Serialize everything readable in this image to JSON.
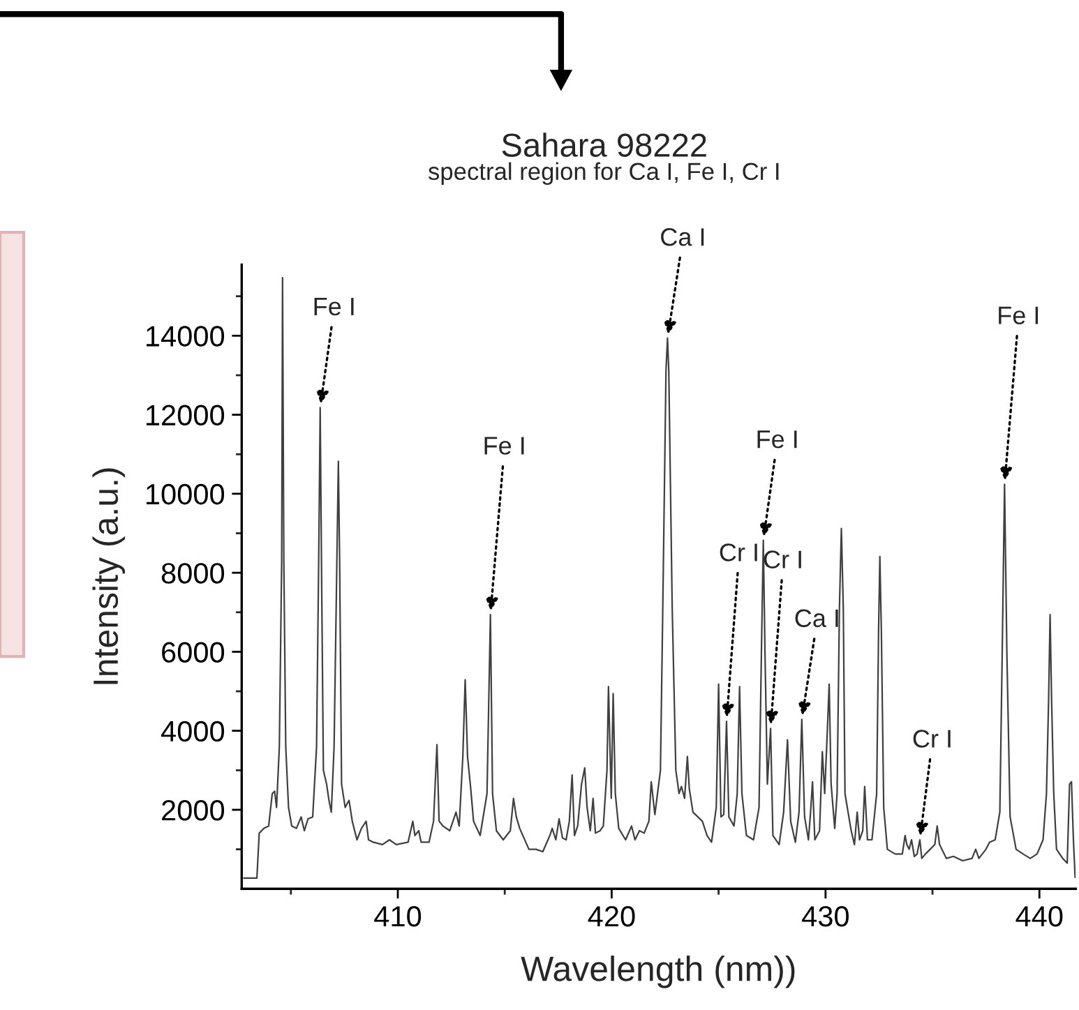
{
  "chart_data": {
    "type": "line",
    "title": "Sahara 98222",
    "subtitle": "spectral region for Ca I, Fe I, Cr I",
    "xlabel": "Wavelength (nm))",
    "ylabel": "Intensity (a.u.)",
    "xlim": [
      402.7,
      441.7
    ],
    "ylim": [
      0,
      15800
    ],
    "xticks": [
      410,
      420,
      430,
      440
    ],
    "yticks": [
      2000,
      4000,
      6000,
      8000,
      10000,
      12000,
      14000
    ],
    "grid": false,
    "legend": false,
    "marker": "none",
    "line_style": "solid",
    "series": [
      {
        "color": "#404040",
        "x": [
          402.8,
          403.41,
          403.52,
          403.74,
          403.96,
          404.13,
          404.24,
          404.33,
          404.46,
          404.57,
          404.61,
          404.67,
          404.76,
          404.89,
          405.04,
          405.26,
          405.48,
          405.63,
          405.8,
          406.02,
          406.2,
          406.3,
          406.37,
          406.43,
          406.52,
          406.67,
          406.78,
          406.89,
          407.02,
          407.15,
          407.22,
          407.28,
          407.37,
          407.54,
          407.72,
          407.87,
          408.09,
          408.3,
          408.52,
          408.63,
          408.85,
          409.28,
          409.61,
          409.93,
          410.48,
          410.7,
          410.8,
          410.98,
          411.09,
          411.46,
          411.67,
          411.83,
          411.93,
          412.11,
          412.43,
          412.72,
          412.87,
          413.04,
          413.15,
          413.26,
          413.41,
          413.54,
          413.85,
          414.17,
          414.33,
          414.43,
          414.61,
          414.93,
          415.26,
          415.41,
          415.54,
          415.7,
          416.13,
          416.46,
          416.78,
          417.11,
          417.22,
          417.39,
          417.54,
          417.7,
          417.87,
          418.02,
          418.15,
          418.26,
          418.41,
          418.59,
          418.74,
          418.85,
          419.0,
          419.13,
          419.24,
          419.46,
          419.61,
          419.78,
          419.85,
          419.98,
          420.07,
          420.17,
          420.33,
          420.65,
          420.93,
          421.09,
          421.3,
          421.52,
          421.74,
          421.85,
          422.02,
          422.28,
          422.39,
          422.54,
          422.61,
          422.67,
          422.83,
          423.0,
          423.15,
          423.26,
          423.41,
          423.54,
          423.63,
          423.8,
          424.24,
          424.46,
          424.67,
          424.89,
          425.0,
          425.11,
          425.24,
          425.37,
          425.48,
          425.72,
          425.87,
          425.98,
          426.09,
          426.3,
          426.63,
          426.89,
          427.0,
          427.09,
          427.17,
          427.28,
          427.43,
          427.54,
          427.83,
          428.04,
          428.22,
          428.37,
          428.59,
          428.76,
          428.89,
          429.02,
          429.2,
          429.3,
          429.39,
          429.5,
          429.72,
          429.85,
          429.96,
          430.07,
          430.17,
          430.26,
          430.43,
          430.54,
          430.65,
          430.74,
          430.83,
          430.91,
          431.09,
          431.2,
          431.35,
          431.48,
          431.59,
          431.74,
          431.83,
          431.96,
          432.17,
          432.39,
          432.48,
          432.54,
          432.61,
          432.72,
          432.89,
          433.26,
          433.59,
          433.72,
          433.8,
          433.91,
          434.02,
          434.15,
          434.28,
          434.41,
          434.5,
          434.67,
          434.89,
          435.11,
          435.22,
          435.33,
          435.65,
          435.98,
          436.41,
          436.85,
          437.02,
          437.17,
          437.5,
          437.67,
          437.93,
          438.15,
          438.26,
          438.37,
          438.48,
          438.63,
          438.91,
          439.24,
          439.57,
          439.89,
          440.17,
          440.33,
          440.43,
          440.5,
          440.57,
          440.67,
          440.8,
          441.09,
          441.3,
          441.41,
          441.5,
          441.59,
          441.67
        ],
        "values": [
          270,
          270,
          1410,
          1530,
          1590,
          2410,
          2470,
          2060,
          3590,
          8290,
          15470,
          8290,
          3590,
          2060,
          1590,
          1530,
          1820,
          1470,
          1770,
          1820,
          3590,
          8290,
          12180,
          8290,
          3000,
          2650,
          2240,
          1940,
          3590,
          8290,
          10820,
          8290,
          2650,
          2060,
          2240,
          1710,
          1240,
          1530,
          1710,
          1240,
          1180,
          1120,
          1240,
          1120,
          1180,
          1710,
          1350,
          1470,
          1180,
          1180,
          1710,
          3650,
          1710,
          1590,
          1470,
          1940,
          1590,
          3350,
          5290,
          3350,
          2530,
          1710,
          1350,
          2410,
          6940,
          2410,
          1470,
          1240,
          1470,
          2290,
          1820,
          1530,
          1000,
          1000,
          940,
          1350,
          1530,
          1240,
          1770,
          1290,
          1240,
          1710,
          2880,
          1350,
          1590,
          2650,
          3060,
          2060,
          1470,
          2290,
          1410,
          1470,
          1590,
          3000,
          5120,
          2290,
          4940,
          2410,
          1530,
          1240,
          1590,
          1240,
          1470,
          1410,
          1710,
          2710,
          1880,
          3000,
          7120,
          13120,
          13940,
          13120,
          7120,
          3000,
          2410,
          2590,
          2290,
          3350,
          2530,
          1940,
          1710,
          1350,
          1180,
          2060,
          5180,
          1820,
          1880,
          4240,
          1820,
          1590,
          2410,
          5120,
          2410,
          1350,
          1240,
          2060,
          5940,
          8820,
          5940,
          2650,
          4060,
          1350,
          1120,
          1940,
          3770,
          1710,
          1180,
          1940,
          4290,
          1820,
          1240,
          1940,
          2710,
          1240,
          1470,
          3470,
          2410,
          3820,
          5180,
          2650,
          1530,
          2410,
          7120,
          9120,
          7120,
          2410,
          1820,
          1470,
          1120,
          1940,
          1240,
          1470,
          2590,
          1240,
          1240,
          2410,
          6530,
          8410,
          6530,
          2060,
          1000,
          880,
          880,
          1350,
          1120,
          1000,
          1240,
          820,
          880,
          1240,
          770,
          880,
          1000,
          1120,
          1590,
          1120,
          770,
          820,
          710,
          770,
          1000,
          770,
          1000,
          1180,
          1240,
          1940,
          5940,
          10240,
          5940,
          1820,
          1000,
          880,
          770,
          880,
          1240,
          2410,
          4770,
          6940,
          4770,
          2410,
          1000,
          770,
          650,
          2650,
          2710,
          1240,
          290
        ]
      }
    ],
    "annotations": [
      {
        "text": "Fe I",
        "x": 406.37,
        "y": 12180
      },
      {
        "text": "Fe I",
        "x": 414.33,
        "y": 6940
      },
      {
        "text": "Ca I",
        "x": 422.61,
        "y": 13940
      },
      {
        "text": "Cr I",
        "x": 425.37,
        "y": 4240
      },
      {
        "text": "Fe I",
        "x": 427.09,
        "y": 8820
      },
      {
        "text": "Cr I",
        "x": 427.43,
        "y": 4060
      },
      {
        "text": "Ca I",
        "x": 428.89,
        "y": 4290
      },
      {
        "text": "Fe I",
        "x": 438.37,
        "y": 10240
      },
      {
        "text": "Cr I",
        "x": 434.41,
        "y": 1240
      }
    ]
  }
}
